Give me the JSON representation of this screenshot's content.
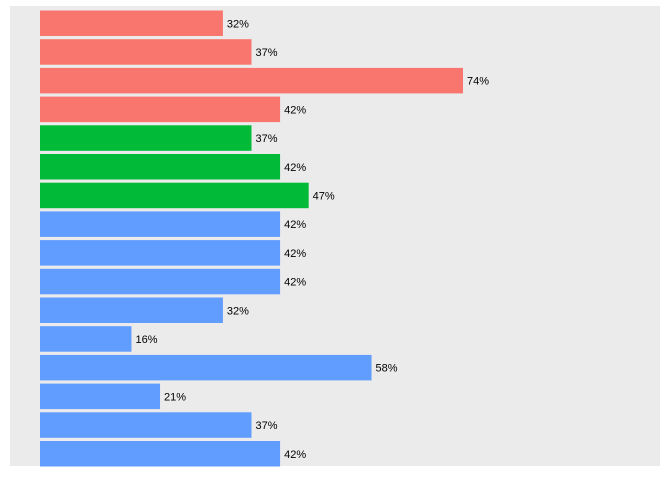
{
  "chart_data": {
    "type": "bar",
    "orientation": "horizontal",
    "title": "",
    "xlabel": "",
    "ylabel": "",
    "grid": false,
    "legend": "none",
    "value_suffix": "%",
    "xlim": [
      0,
      100
    ],
    "panel_color": "#EBEBEB",
    "bars": [
      {
        "value": 32,
        "label": "32%",
        "color": "#F8766D"
      },
      {
        "value": 37,
        "label": "37%",
        "color": "#F8766D"
      },
      {
        "value": 74,
        "label": "74%",
        "color": "#F8766D"
      },
      {
        "value": 42,
        "label": "42%",
        "color": "#F8766D"
      },
      {
        "value": 37,
        "label": "37%",
        "color": "#00BA38"
      },
      {
        "value": 42,
        "label": "42%",
        "color": "#00BA38"
      },
      {
        "value": 47,
        "label": "47%",
        "color": "#00BA38"
      },
      {
        "value": 42,
        "label": "42%",
        "color": "#619CFF"
      },
      {
        "value": 42,
        "label": "42%",
        "color": "#619CFF"
      },
      {
        "value": 42,
        "label": "42%",
        "color": "#619CFF"
      },
      {
        "value": 32,
        "label": "32%",
        "color": "#619CFF"
      },
      {
        "value": 16,
        "label": "16%",
        "color": "#619CFF"
      },
      {
        "value": 58,
        "label": "58%",
        "color": "#619CFF"
      },
      {
        "value": 21,
        "label": "21%",
        "color": "#619CFF"
      },
      {
        "value": 37,
        "label": "37%",
        "color": "#619CFF"
      },
      {
        "value": 42,
        "label": "42%",
        "color": "#619CFF"
      }
    ]
  }
}
